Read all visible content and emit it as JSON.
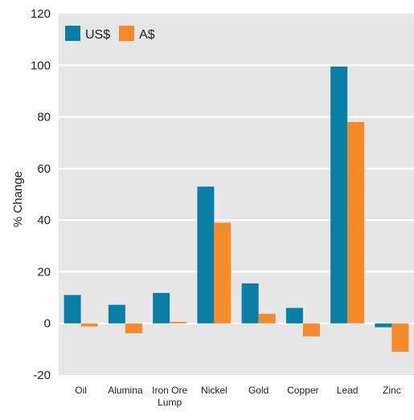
{
  "chart_data": {
    "type": "bar",
    "categories": [
      "Oil",
      "Alumina",
      "Iron Ore\nLump",
      "Nickel",
      "Gold",
      "Copper",
      "Lead",
      "Zinc"
    ],
    "series": [
      {
        "name": "US$",
        "color": "#0a7fa6",
        "values": [
          11,
          7.2,
          11.8,
          53,
          15.5,
          6,
          99.5,
          -1.5
        ]
      },
      {
        "name": "A$",
        "color": "#f58a2b",
        "values": [
          -1.2,
          -3.8,
          0.6,
          39,
          3.7,
          -5,
          78,
          -11
        ]
      }
    ],
    "title": "",
    "xlabel": "",
    "ylabel": "% Change",
    "ylim": [
      -20,
      120
    ],
    "yticks": [
      -20,
      0,
      20,
      40,
      60,
      80,
      100,
      120
    ],
    "grid": true,
    "legend_position": "top-left",
    "background_color": "#e6e6e6",
    "grid_color": "#ffffff"
  }
}
